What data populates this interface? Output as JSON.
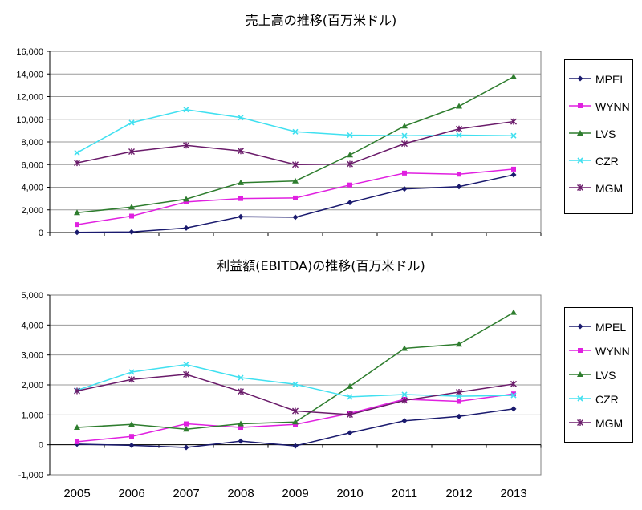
{
  "chart_data": [
    {
      "type": "line",
      "title": "売上高の推移(百万米ドル)",
      "x": [
        "2005",
        "2006",
        "2007",
        "2008",
        "2009",
        "2010",
        "2011",
        "2012",
        "2013"
      ],
      "ylim": [
        0,
        16000
      ],
      "yticks": [
        "0",
        "2,000",
        "4,000",
        "6,000",
        "8,000",
        "10,000",
        "12,000",
        "14,000",
        "16,000"
      ],
      "ytick_values": [
        0,
        2000,
        4000,
        6000,
        8000,
        10000,
        12000,
        14000,
        16000
      ],
      "grid": true,
      "legend_position": "right",
      "series": [
        {
          "name": "MPEL",
          "color": "#1a1a6e",
          "marker": "diamond",
          "values": [
            20,
            50,
            400,
            1400,
            1350,
            2650,
            3850,
            4050,
            5100
          ]
        },
        {
          "name": "WYNN",
          "color": "#e020e0",
          "marker": "square",
          "values": [
            700,
            1450,
            2700,
            3000,
            3050,
            4200,
            5250,
            5150,
            5600
          ]
        },
        {
          "name": "LVS",
          "color": "#2e7d2e",
          "marker": "triangle",
          "values": [
            1750,
            2250,
            2950,
            4400,
            4550,
            6850,
            9400,
            11150,
            13750
          ]
        },
        {
          "name": "CZR",
          "color": "#40e0f0",
          "marker": "x",
          "values": [
            7050,
            9700,
            10850,
            10150,
            8900,
            8600,
            8550,
            8600,
            8550
          ]
        },
        {
          "name": "MGM",
          "color": "#6a1b6a",
          "marker": "star",
          "values": [
            6150,
            7150,
            7700,
            7200,
            6000,
            6050,
            7850,
            9150,
            9800
          ]
        }
      ]
    },
    {
      "type": "line",
      "title": "利益額(EBITDA)の推移(百万米ドル)",
      "x": [
        "2005",
        "2006",
        "2007",
        "2008",
        "2009",
        "2010",
        "2011",
        "2012",
        "2013"
      ],
      "ylim": [
        -1000,
        5000
      ],
      "yticks": [
        "-1,000",
        "0",
        "1,000",
        "2,000",
        "3,000",
        "4,000",
        "5,000"
      ],
      "ytick_values": [
        -1000,
        0,
        1000,
        2000,
        3000,
        4000,
        5000
      ],
      "grid": true,
      "legend_position": "right",
      "series": [
        {
          "name": "MPEL",
          "color": "#1a1a6e",
          "marker": "diamond",
          "values": [
            20,
            -20,
            -90,
            120,
            -40,
            400,
            800,
            950,
            1200
          ]
        },
        {
          "name": "WYNN",
          "color": "#e020e0",
          "marker": "square",
          "values": [
            100,
            280,
            700,
            580,
            680,
            1050,
            1520,
            1450,
            1700
          ]
        },
        {
          "name": "LVS",
          "color": "#2e7d2e",
          "marker": "triangle",
          "values": [
            580,
            680,
            520,
            700,
            760,
            1950,
            3220,
            3360,
            4420
          ]
        },
        {
          "name": "CZR",
          "color": "#40e0f0",
          "marker": "x",
          "values": [
            1820,
            2430,
            2680,
            2240,
            2020,
            1600,
            1680,
            1620,
            1650
          ]
        },
        {
          "name": "MGM",
          "color": "#6a1b6a",
          "marker": "star",
          "values": [
            1800,
            2180,
            2350,
            1780,
            1130,
            1010,
            1480,
            1760,
            2030
          ]
        }
      ]
    }
  ]
}
